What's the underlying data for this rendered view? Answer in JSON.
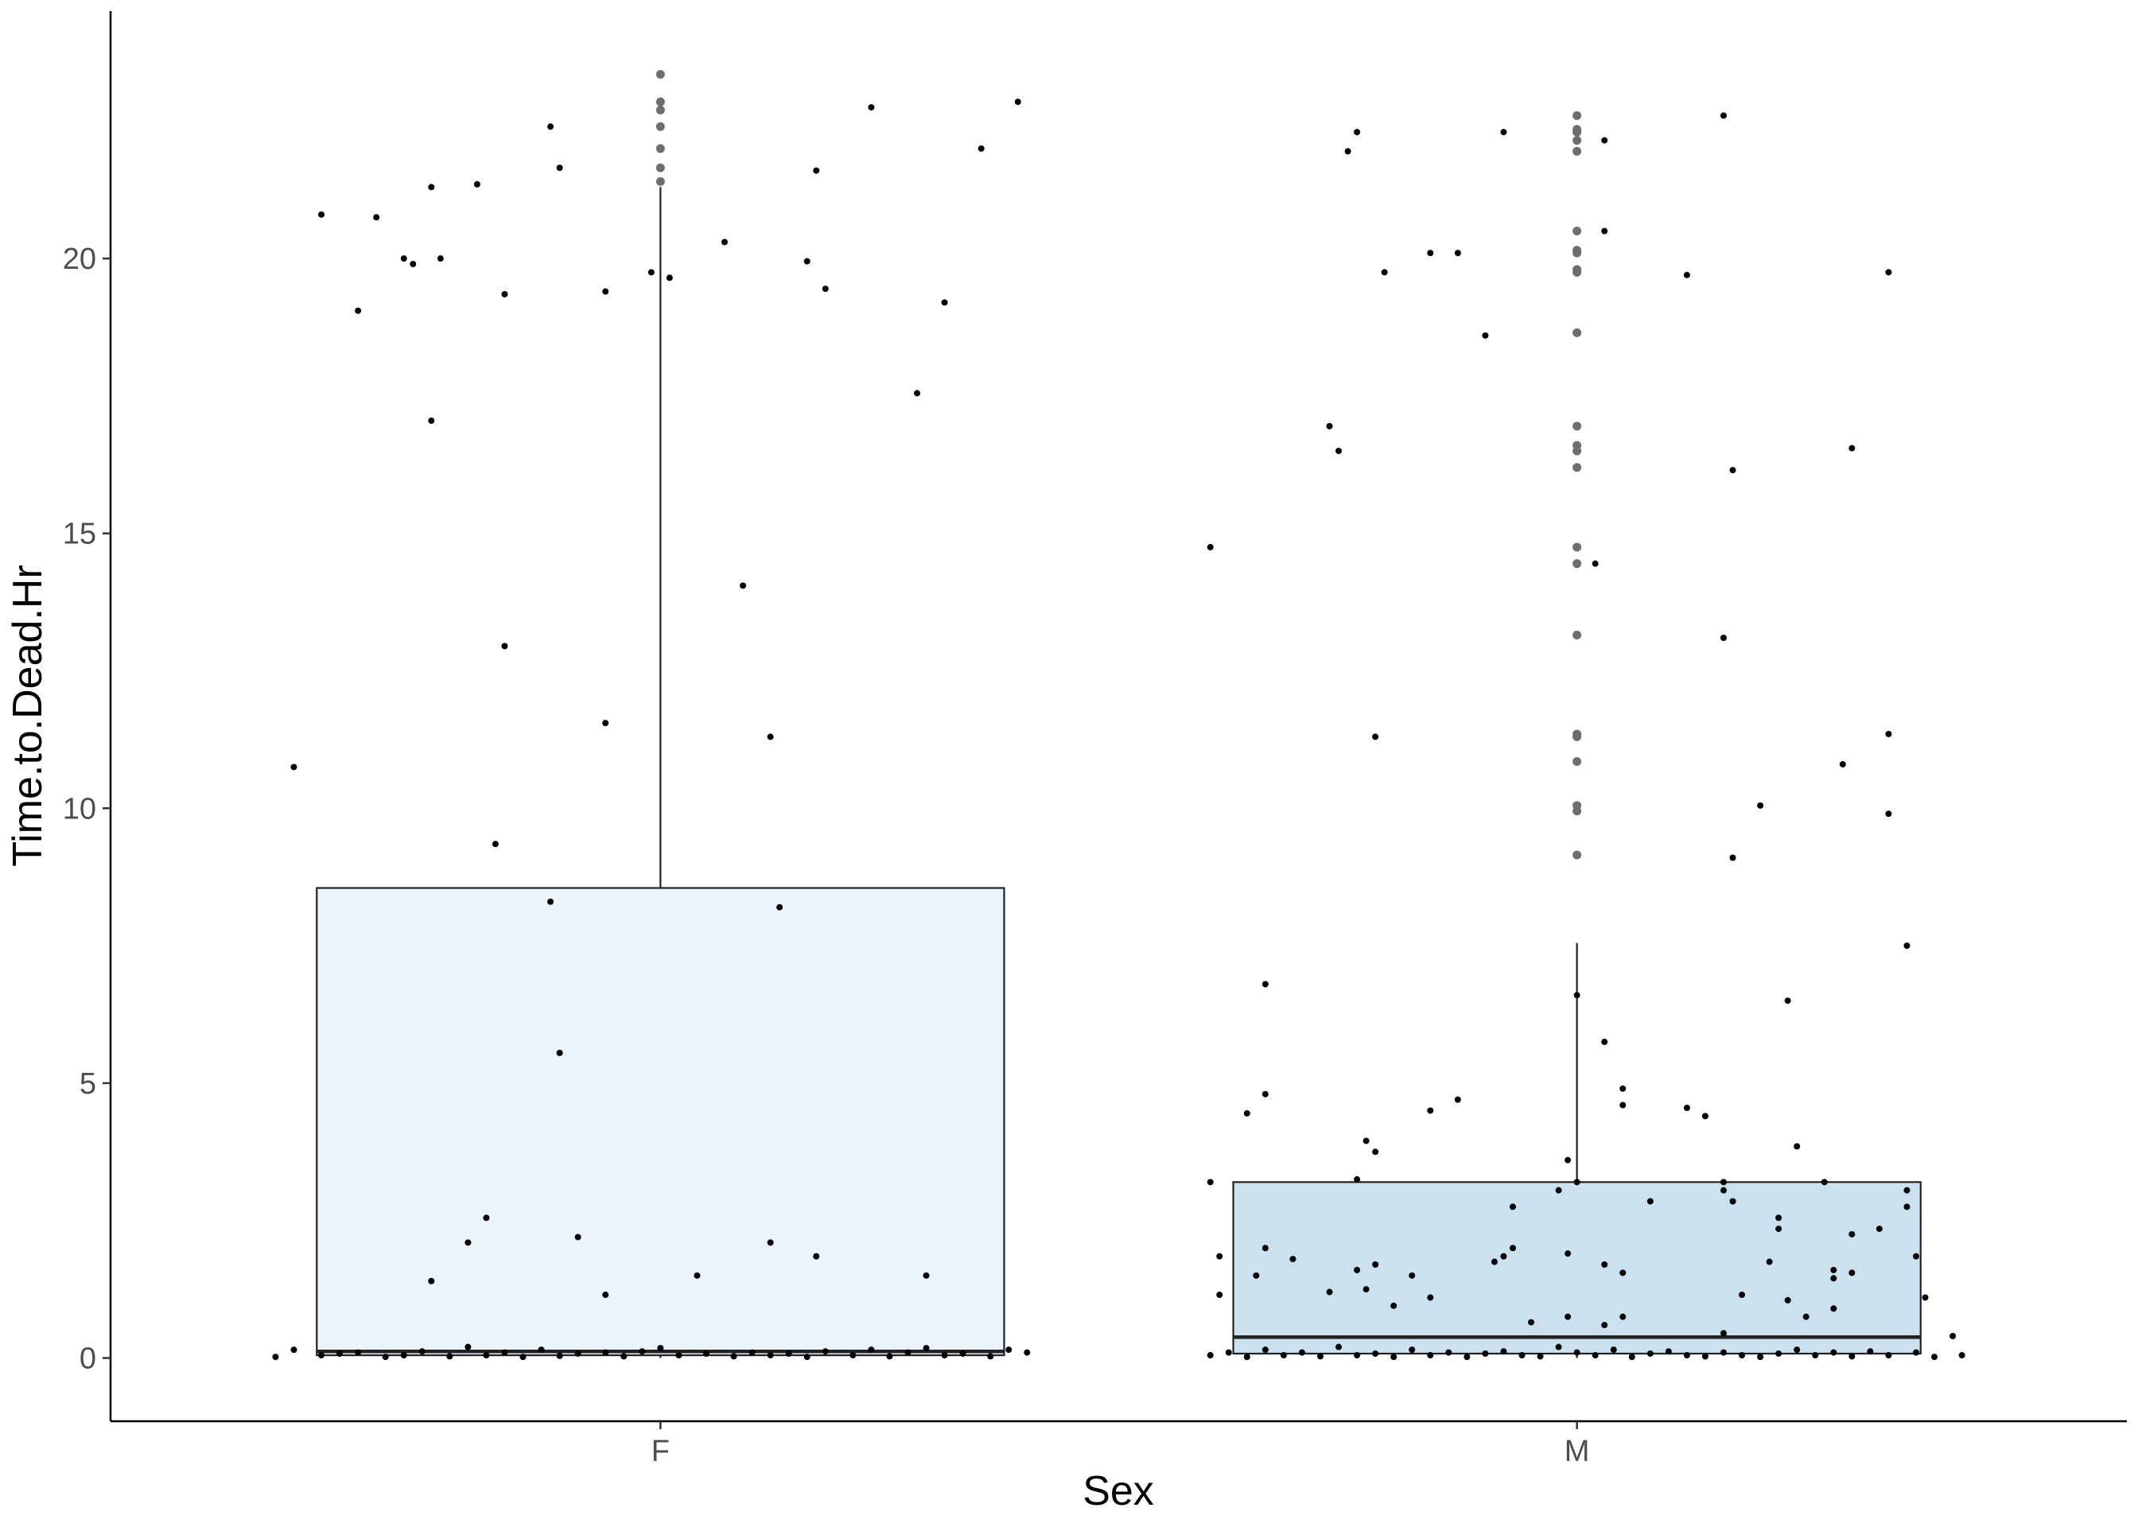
{
  "chart_data": {
    "type": "boxplot",
    "xlabel": "Sex",
    "ylabel": "Time.to.Dead.Hr",
    "categories": [
      "F",
      "M"
    ],
    "yticks": [
      0,
      5,
      10,
      15,
      20
    ],
    "ylim": [
      -1.15,
      24.5
    ],
    "grid": false,
    "legend": "none",
    "colors": {
      "F": "#ebf3fb",
      "M": "#cce1ef",
      "outline": "#222222",
      "point": "#000000",
      "outlier": "#6e6e6e"
    },
    "boxes": [
      {
        "category": "F",
        "lower_whisker": 0.0,
        "q1": 0.05,
        "median": 0.12,
        "q3": 8.55,
        "upper_whisker": 21.3,
        "outliers": [
          21.4,
          21.65,
          22.0,
          22.4,
          22.7,
          22.85,
          23.35
        ]
      },
      {
        "category": "M",
        "lower_whisker": 0.0,
        "q1": 0.08,
        "median": 0.38,
        "q3": 3.2,
        "upper_whisker": 7.55,
        "outliers": [
          9.15,
          9.95,
          10.05,
          10.85,
          11.3,
          11.35,
          13.15,
          14.45,
          14.75,
          16.2,
          16.5,
          16.6,
          16.95,
          18.65,
          19.75,
          19.8,
          20.1,
          20.15,
          20.5,
          21.95,
          22.15,
          22.3,
          22.35,
          22.6
        ]
      }
    ],
    "jitter_points": {
      "F": [
        [
          -0.4,
          10.75
        ],
        [
          -0.37,
          20.8
        ],
        [
          -0.33,
          19.05
        ],
        [
          -0.31,
          20.75
        ],
        [
          -0.28,
          20.0
        ],
        [
          -0.27,
          19.9
        ],
        [
          -0.25,
          21.3
        ],
        [
          -0.25,
          17.05
        ],
        [
          -0.24,
          20.0
        ],
        [
          -0.25,
          1.4
        ],
        [
          -0.2,
          21.35
        ],
        [
          -0.18,
          9.35
        ],
        [
          -0.17,
          19.35
        ],
        [
          -0.17,
          12.95
        ],
        [
          -0.21,
          2.1
        ],
        [
          -0.19,
          2.55
        ],
        [
          -0.12,
          22.4
        ],
        [
          -0.11,
          21.65
        ],
        [
          -0.12,
          8.3
        ],
        [
          -0.11,
          5.55
        ],
        [
          -0.09,
          2.2
        ],
        [
          -0.06,
          19.4
        ],
        [
          -0.06,
          11.55
        ],
        [
          -0.06,
          1.15
        ],
        [
          -0.01,
          19.75
        ],
        [
          0.01,
          19.65
        ],
        [
          0.04,
          1.5
        ],
        [
          0.07,
          20.3
        ],
        [
          0.09,
          14.05
        ],
        [
          0.12,
          11.3
        ],
        [
          0.12,
          2.1
        ],
        [
          0.13,
          8.2
        ],
        [
          0.16,
          19.95
        ],
        [
          0.17,
          21.6
        ],
        [
          0.17,
          1.85
        ],
        [
          0.18,
          19.45
        ],
        [
          0.23,
          22.75
        ],
        [
          0.28,
          17.55
        ],
        [
          0.31,
          19.2
        ],
        [
          0.29,
          1.5
        ],
        [
          0.35,
          22.0
        ],
        [
          0.39,
          22.85
        ],
        [
          -0.42,
          0.02
        ],
        [
          -0.4,
          0.15
        ],
        [
          -0.37,
          0.05
        ],
        [
          -0.35,
          0.08
        ],
        [
          -0.33,
          0.1
        ],
        [
          -0.3,
          0.02
        ],
        [
          -0.28,
          0.05
        ],
        [
          -0.26,
          0.12
        ],
        [
          -0.23,
          0.03
        ],
        [
          -0.21,
          0.2
        ],
        [
          -0.19,
          0.05
        ],
        [
          -0.17,
          0.1
        ],
        [
          -0.15,
          0.02
        ],
        [
          -0.13,
          0.15
        ],
        [
          -0.11,
          0.04
        ],
        [
          -0.09,
          0.08
        ],
        [
          -0.06,
          0.1
        ],
        [
          -0.04,
          0.03
        ],
        [
          -0.02,
          0.12
        ],
        [
          0.0,
          0.18
        ],
        [
          0.02,
          0.05
        ],
        [
          0.05,
          0.08
        ],
        [
          0.08,
          0.03
        ],
        [
          0.1,
          0.1
        ],
        [
          0.12,
          0.05
        ],
        [
          0.14,
          0.08
        ],
        [
          0.16,
          0.02
        ],
        [
          0.18,
          0.12
        ],
        [
          0.21,
          0.05
        ],
        [
          0.23,
          0.15
        ],
        [
          0.25,
          0.03
        ],
        [
          0.27,
          0.1
        ],
        [
          0.29,
          0.18
        ],
        [
          0.31,
          0.05
        ],
        [
          0.33,
          0.08
        ],
        [
          0.36,
          0.03
        ],
        [
          0.38,
          0.15
        ],
        [
          0.4,
          0.1
        ]
      ],
      "M": [
        [
          -0.4,
          14.75
        ],
        [
          -0.34,
          6.8
        ],
        [
          -0.34,
          4.8
        ],
        [
          -0.36,
          4.45
        ],
        [
          -0.4,
          3.2
        ],
        [
          -0.39,
          1.85
        ],
        [
          -0.39,
          1.15
        ],
        [
          -0.34,
          2.0
        ],
        [
          -0.35,
          1.5
        ],
        [
          -0.31,
          1.8
        ],
        [
          -0.27,
          1.2
        ],
        [
          -0.27,
          16.95
        ],
        [
          -0.26,
          16.5
        ],
        [
          -0.25,
          21.95
        ],
        [
          -0.24,
          22.3
        ],
        [
          -0.21,
          19.75
        ],
        [
          -0.22,
          11.3
        ],
        [
          -0.24,
          3.25
        ],
        [
          -0.23,
          3.95
        ],
        [
          -0.22,
          3.75
        ],
        [
          -0.24,
          1.6
        ],
        [
          -0.23,
          1.25
        ],
        [
          -0.22,
          1.7
        ],
        [
          -0.2,
          0.95
        ],
        [
          -0.18,
          1.5
        ],
        [
          -0.16,
          20.1
        ],
        [
          -0.13,
          20.1
        ],
        [
          -0.1,
          18.6
        ],
        [
          -0.08,
          22.3
        ],
        [
          -0.16,
          4.5
        ],
        [
          -0.13,
          4.7
        ],
        [
          -0.16,
          1.1
        ],
        [
          -0.07,
          2.75
        ],
        [
          -0.09,
          1.75
        ],
        [
          -0.07,
          2.0
        ],
        [
          -0.08,
          1.85
        ],
        [
          -0.05,
          0.65
        ],
        [
          -0.01,
          3.6
        ],
        [
          -0.02,
          3.05
        ],
        [
          0.0,
          6.6
        ],
        [
          0.0,
          3.2
        ],
        [
          -0.01,
          1.9
        ],
        [
          -0.01,
          0.75
        ],
        [
          0.03,
          20.5
        ],
        [
          0.03,
          22.15
        ],
        [
          0.03,
          5.75
        ],
        [
          0.03,
          0.6
        ],
        [
          0.05,
          4.9
        ],
        [
          0.05,
          4.6
        ],
        [
          0.05,
          1.55
        ],
        [
          0.03,
          1.7
        ],
        [
          0.05,
          0.75
        ],
        [
          0.02,
          14.45
        ],
        [
          0.08,
          2.85
        ],
        [
          0.12,
          4.55
        ],
        [
          0.14,
          4.4
        ],
        [
          0.12,
          19.7
        ],
        [
          0.16,
          3.2
        ],
        [
          0.16,
          3.05
        ],
        [
          0.17,
          2.85
        ],
        [
          0.16,
          22.6
        ],
        [
          0.16,
          13.1
        ],
        [
          0.17,
          16.15
        ],
        [
          0.17,
          9.1
        ],
        [
          0.16,
          0.45
        ],
        [
          0.18,
          1.15
        ],
        [
          0.2,
          10.05
        ],
        [
          0.21,
          1.75
        ],
        [
          0.22,
          2.55
        ],
        [
          0.22,
          2.35
        ],
        [
          0.23,
          6.5
        ],
        [
          0.24,
          3.85
        ],
        [
          0.23,
          1.05
        ],
        [
          0.25,
          0.75
        ],
        [
          0.27,
          3.2
        ],
        [
          0.29,
          10.8
        ],
        [
          0.3,
          16.55
        ],
        [
          0.28,
          1.6
        ],
        [
          0.28,
          1.45
        ],
        [
          0.28,
          0.9
        ],
        [
          0.3,
          1.55
        ],
        [
          0.3,
          2.25
        ],
        [
          0.34,
          19.75
        ],
        [
          0.34,
          11.35
        ],
        [
          0.34,
          9.9
        ],
        [
          0.36,
          7.5
        ],
        [
          0.36,
          2.75
        ],
        [
          0.36,
          3.05
        ],
        [
          0.33,
          2.35
        ],
        [
          0.37,
          1.85
        ],
        [
          0.38,
          1.1
        ],
        [
          0.41,
          0.4
        ],
        [
          -0.4,
          0.05
        ],
        [
          -0.38,
          0.1
        ],
        [
          -0.36,
          0.02
        ],
        [
          -0.34,
          0.15
        ],
        [
          -0.32,
          0.05
        ],
        [
          -0.3,
          0.1
        ],
        [
          -0.28,
          0.03
        ],
        [
          -0.26,
          0.2
        ],
        [
          -0.24,
          0.05
        ],
        [
          -0.22,
          0.08
        ],
        [
          -0.2,
          0.02
        ],
        [
          -0.18,
          0.15
        ],
        [
          -0.16,
          0.05
        ],
        [
          -0.14,
          0.1
        ],
        [
          -0.12,
          0.02
        ],
        [
          -0.1,
          0.08
        ],
        [
          -0.08,
          0.12
        ],
        [
          -0.06,
          0.05
        ],
        [
          -0.04,
          0.03
        ],
        [
          -0.02,
          0.2
        ],
        [
          0.0,
          0.1
        ],
        [
          0.02,
          0.05
        ],
        [
          0.04,
          0.15
        ],
        [
          0.06,
          0.02
        ],
        [
          0.08,
          0.08
        ],
        [
          0.1,
          0.12
        ],
        [
          0.12,
          0.05
        ],
        [
          0.14,
          0.03
        ],
        [
          0.16,
          0.1
        ],
        [
          0.18,
          0.05
        ],
        [
          0.2,
          0.02
        ],
        [
          0.22,
          0.08
        ],
        [
          0.24,
          0.15
        ],
        [
          0.26,
          0.05
        ],
        [
          0.28,
          0.1
        ],
        [
          0.3,
          0.03
        ],
        [
          0.32,
          0.12
        ],
        [
          0.34,
          0.05
        ],
        [
          0.37,
          0.1
        ],
        [
          0.39,
          0.02
        ],
        [
          0.42,
          0.05
        ]
      ]
    }
  }
}
